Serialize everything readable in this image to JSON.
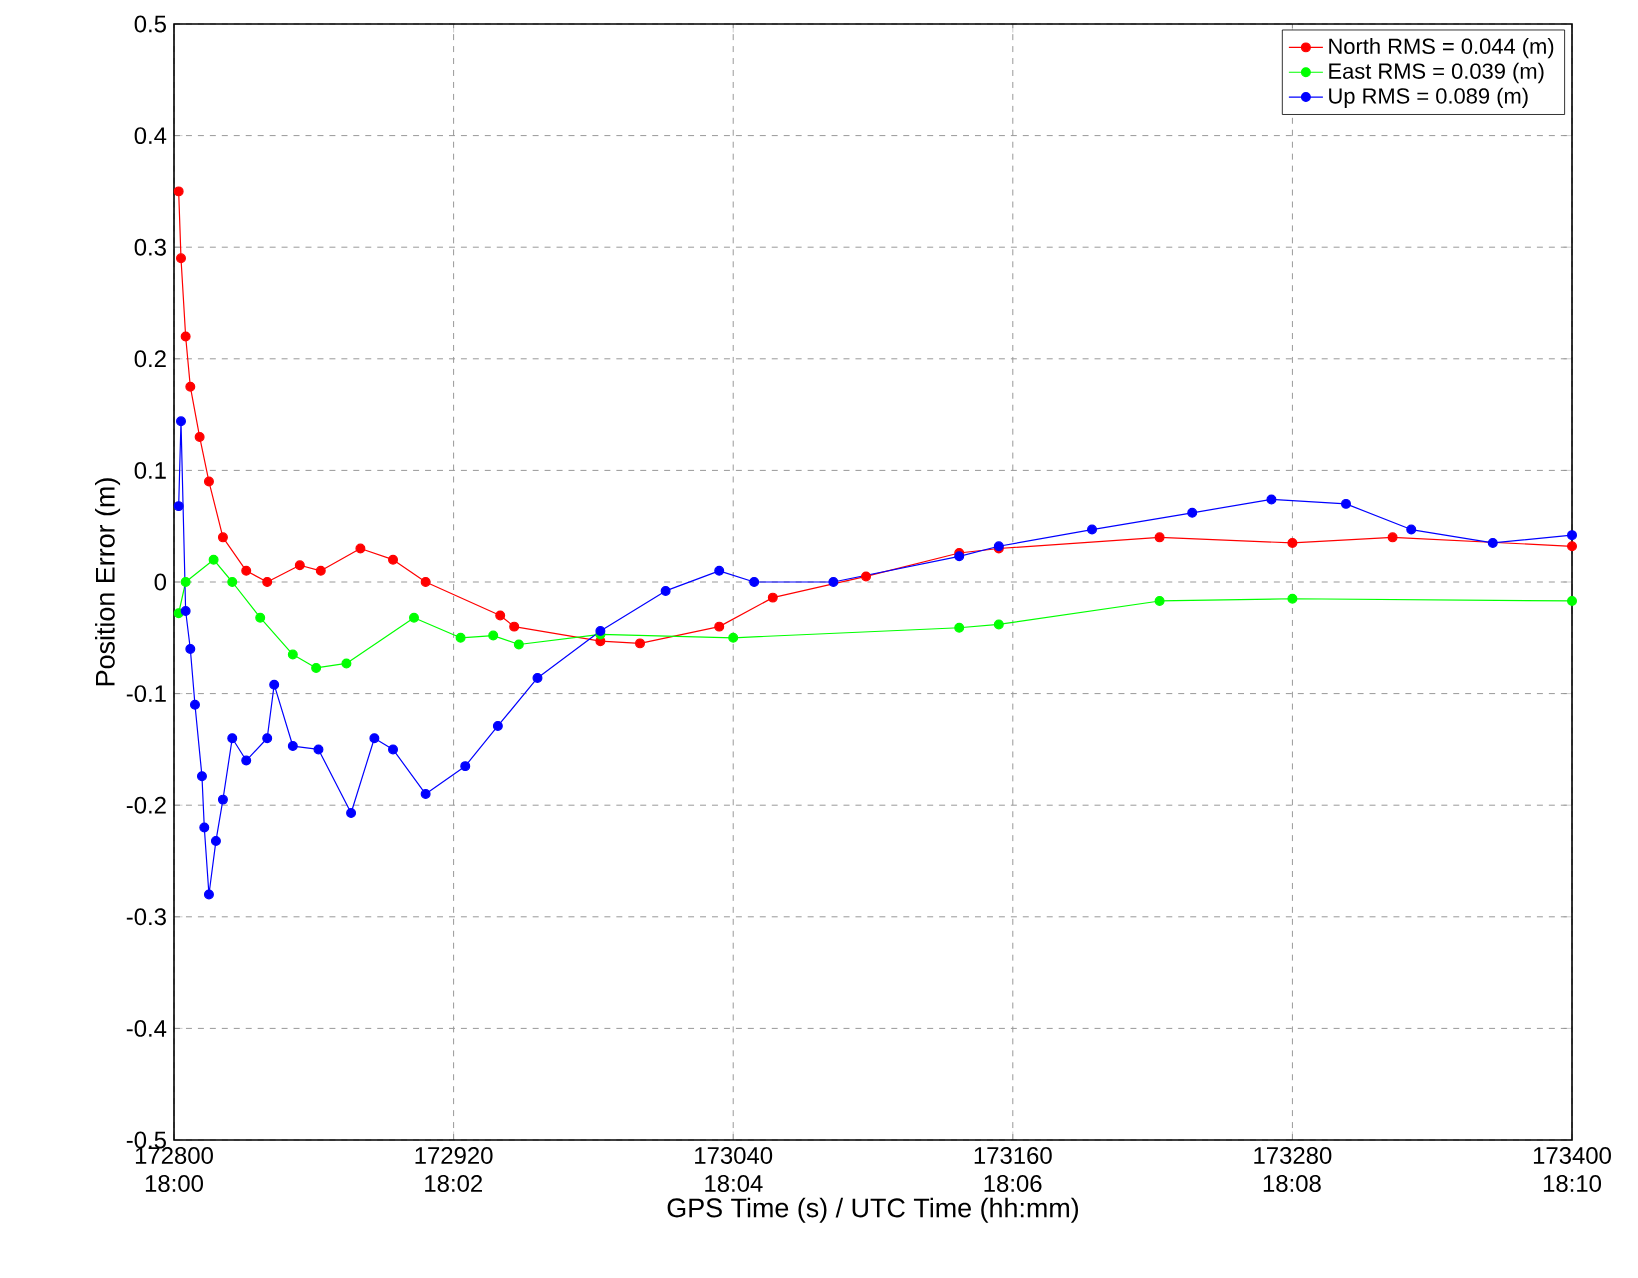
{
  "chart_data": {
    "type": "line",
    "xlabel": "GPS Time (s) / UTC Time (hh:mm)",
    "ylabel": "Position Error (m)",
    "xlim": [
      172800,
      173400
    ],
    "ylim": [
      -0.5,
      0.5
    ],
    "xticks": [
      172800,
      172920,
      173040,
      173160,
      173280,
      173400
    ],
    "x2lim": [
      18,
      18.1667
    ],
    "x2ticks": [
      {
        "value": 18,
        "label": "18:00"
      },
      {
        "value": 18.0333,
        "label": "18:02"
      },
      {
        "value": 18.0667,
        "label": "18:04"
      },
      {
        "value": 18.1,
        "label": "18:06"
      },
      {
        "value": 18.1333,
        "label": "18:08"
      },
      {
        "value": 18.1667,
        "label": "18:10"
      }
    ],
    "yticks": [
      -0.5,
      -0.4,
      -0.3,
      -0.2,
      -0.1,
      0,
      0.1,
      0.2,
      0.3,
      0.4,
      0.5
    ],
    "grid": true,
    "legend": "top right",
    "marker": "circle",
    "line_style": "solid",
    "series": [
      {
        "name": "North RMS = 0.044 (m)",
        "color": "#ff0000",
        "x": [
          172802,
          172803,
          172805,
          172807,
          172811,
          172815,
          172821,
          172831,
          172840,
          172854,
          172863,
          172880,
          172894,
          172908,
          172940,
          172946,
          172983,
          173000,
          173034,
          173057,
          173097,
          173137,
          173154,
          173223,
          173280,
          173323,
          173400
        ],
        "values": [
          0.35,
          0.29,
          0.22,
          0.175,
          0.13,
          0.09,
          0.04,
          0.01,
          0.0,
          0.015,
          0.01,
          0.03,
          0.02,
          0.0,
          -0.03,
          -0.04,
          -0.053,
          -0.055,
          -0.04,
          -0.014,
          0.005,
          0.026,
          0.03,
          0.04,
          0.035,
          0.04,
          0.032
        ]
      },
      {
        "name": "East RMS = 0.039 (m)",
        "color": "#00ff00",
        "x": [
          172802,
          172805,
          172817,
          172825,
          172837,
          172851,
          172861,
          172874,
          172903,
          172923,
          172937,
          172948,
          172983,
          173040,
          173137,
          173154,
          173223,
          173280,
          173400
        ],
        "values": [
          -0.028,
          0.0,
          0.02,
          0.0,
          -0.032,
          -0.065,
          -0.077,
          -0.073,
          -0.032,
          -0.05,
          -0.048,
          -0.056,
          -0.047,
          -0.05,
          -0.041,
          -0.038,
          -0.017,
          -0.015,
          -0.017
        ]
      },
      {
        "name": "Up RMS = 0.089 (m)",
        "color": "#0000ff",
        "x": [
          172802,
          172803,
          172805,
          172807,
          172809,
          172812,
          172813,
          172815,
          172818,
          172821,
          172825,
          172831,
          172840,
          172843,
          172851,
          172862,
          172876,
          172886,
          172894,
          172908,
          172925,
          172939,
          172956,
          172983,
          173011,
          173034,
          173049,
          173083,
          173137,
          173154,
          173194,
          173237,
          173271,
          173303,
          173331,
          173366,
          173400
        ],
        "values": [
          0.068,
          0.144,
          -0.026,
          -0.06,
          -0.11,
          -0.174,
          -0.22,
          -0.28,
          -0.232,
          -0.195,
          -0.14,
          -0.16,
          -0.14,
          -0.092,
          -0.147,
          -0.15,
          -0.207,
          -0.14,
          -0.15,
          -0.19,
          -0.165,
          -0.129,
          -0.086,
          -0.044,
          -0.008,
          0.01,
          0.0,
          0.0,
          0.023,
          0.032,
          0.047,
          0.062,
          0.074,
          0.07,
          0.047,
          0.035,
          0.042
        ]
      }
    ]
  }
}
